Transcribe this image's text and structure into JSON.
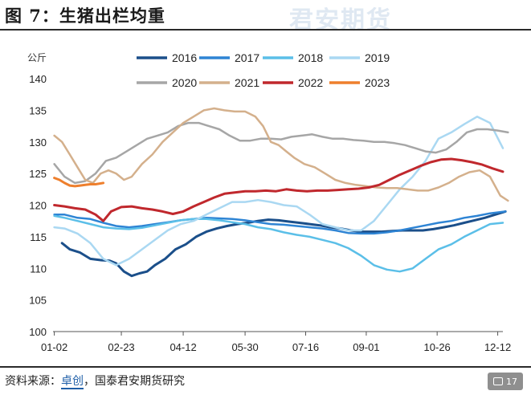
{
  "figure": {
    "title": "图 7：生猪出栏均重",
    "watermark": "君安期货",
    "source_prefix": "资料来源：",
    "source_link": "卓创",
    "source_suffix": "，国泰君安期货研究",
    "page_number": "17"
  },
  "chart_data": {
    "type": "line",
    "title": "",
    "ylabel": "公斤",
    "xlabel": "",
    "ylim": [
      100,
      140
    ],
    "yticks": [
      100,
      105,
      110,
      115,
      120,
      125,
      130,
      135,
      140
    ],
    "xlim": [
      1,
      350
    ],
    "xtick_labels": [
      "01-02",
      "02-23",
      "04-12",
      "05-30",
      "07-16",
      "09-01",
      "10-26",
      "12-12"
    ],
    "xtick_days": [
      2,
      54,
      102,
      150,
      197,
      244,
      299,
      346
    ],
    "x_unit": "day of year",
    "grid": false,
    "legend_position": "top",
    "series": [
      {
        "name": "2016",
        "color": "#1b4f8a",
        "width": 3,
        "x": [
          8,
          14,
          22,
          30,
          38,
          45,
          50,
          56,
          62,
          68,
          74,
          80,
          88,
          96,
          104,
          112,
          120,
          128,
          136,
          144,
          152,
          160,
          168,
          176,
          184,
          192,
          200,
          208,
          216,
          224,
          232,
          240,
          248,
          256,
          264,
          272,
          280,
          288,
          296,
          304,
          312,
          320,
          328,
          336,
          344,
          352
        ],
        "y": [
          114,
          113,
          112.5,
          111.5,
          111.3,
          111.2,
          110.8,
          109.5,
          108.8,
          109.2,
          109.5,
          110.5,
          111.5,
          113,
          113.8,
          115,
          115.8,
          116.3,
          116.7,
          117,
          117.2,
          117.5,
          117.7,
          117.6,
          117.4,
          117.2,
          117,
          116.8,
          116.5,
          116.3,
          116,
          115.8,
          115.8,
          115.8,
          115.9,
          116,
          116,
          116,
          116.2,
          116.5,
          116.8,
          117.2,
          117.6,
          118,
          118.5,
          119
        ]
      },
      {
        "name": "2017",
        "color": "#2e84d4",
        "width": 2.5,
        "x": [
          2,
          10,
          20,
          30,
          40,
          50,
          60,
          70,
          80,
          90,
          100,
          110,
          120,
          130,
          140,
          150,
          160,
          170,
          180,
          190,
          200,
          210,
          220,
          230,
          240,
          250,
          260,
          270,
          280,
          290,
          300,
          310,
          320,
          330,
          340,
          352
        ],
        "y": [
          118.5,
          118.5,
          118,
          117.8,
          117.2,
          116.7,
          116.5,
          116.7,
          117,
          117.3,
          117.6,
          117.8,
          118,
          117.9,
          117.8,
          117.6,
          117.3,
          117,
          116.9,
          116.7,
          116.5,
          116.3,
          116,
          115.6,
          115.5,
          115.5,
          115.7,
          116,
          116.4,
          116.8,
          117.2,
          117.5,
          118,
          118.3,
          118.7,
          119
        ]
      },
      {
        "name": "2018",
        "color": "#5bbfe8",
        "width": 2.5,
        "x": [
          2,
          10,
          20,
          30,
          40,
          50,
          60,
          70,
          80,
          90,
          100,
          110,
          120,
          130,
          140,
          150,
          160,
          170,
          180,
          190,
          200,
          210,
          220,
          230,
          240,
          250,
          260,
          270,
          280,
          290,
          300,
          310,
          320,
          330,
          340,
          350
        ],
        "y": [
          118.3,
          118,
          117.5,
          117,
          116.5,
          116.3,
          116.2,
          116.4,
          116.8,
          117.2,
          117.6,
          117.8,
          117.8,
          117.6,
          117.3,
          117,
          116.5,
          116.2,
          115.7,
          115.3,
          115,
          114.5,
          114,
          113.2,
          112,
          110.5,
          109.8,
          109.5,
          110,
          111.5,
          113,
          113.8,
          115,
          116,
          117,
          117.2
        ]
      },
      {
        "name": "2019",
        "color": "#aad8f2",
        "width": 2.5,
        "x": [
          2,
          10,
          20,
          30,
          40,
          50,
          60,
          70,
          80,
          90,
          100,
          110,
          120,
          130,
          140,
          150,
          160,
          170,
          180,
          190,
          200,
          210,
          220,
          230,
          240,
          250,
          260,
          270,
          280,
          290,
          300,
          310,
          320,
          330,
          340,
          350
        ],
        "y": [
          116.5,
          116.3,
          115.5,
          114,
          111.5,
          110.5,
          111.5,
          113,
          114.5,
          116,
          117,
          117.5,
          118.5,
          119.5,
          120.5,
          120.5,
          120.8,
          120.5,
          120,
          119.8,
          118.5,
          117,
          116.5,
          116,
          116,
          117.5,
          120,
          122.5,
          124.5,
          127,
          130.5,
          131.5,
          132.8,
          134,
          133,
          129
        ]
      },
      {
        "name": "2020",
        "color": "#a6a6a6",
        "width": 2.5,
        "x": [
          2,
          10,
          18,
          26,
          34,
          42,
          50,
          58,
          66,
          74,
          82,
          90,
          98,
          106,
          114,
          122,
          130,
          138,
          146,
          154,
          162,
          170,
          178,
          186,
          194,
          202,
          210,
          218,
          226,
          234,
          242,
          250,
          258,
          266,
          274,
          282,
          290,
          298,
          306,
          314,
          322,
          330,
          338,
          346,
          354
        ],
        "y": [
          126.5,
          124.5,
          123.5,
          123.8,
          125,
          127,
          127.5,
          128.5,
          129.5,
          130.5,
          131,
          131.5,
          132.5,
          133,
          133,
          132.5,
          132,
          131,
          130.2,
          130.2,
          130.5,
          130.5,
          130.4,
          130.8,
          131,
          131.2,
          130.8,
          130.5,
          130.5,
          130.3,
          130.2,
          130,
          130,
          129.8,
          129.5,
          129,
          128.5,
          128.3,
          128.8,
          130,
          131.5,
          132,
          132,
          131.8,
          131.5
        ]
      },
      {
        "name": "2021",
        "color": "#d4b08c",
        "width": 2.5,
        "x": [
          2,
          8,
          14,
          20,
          26,
          32,
          38,
          44,
          50,
          56,
          62,
          70,
          78,
          86,
          94,
          102,
          110,
          118,
          126,
          134,
          142,
          150,
          158,
          164,
          170,
          176,
          182,
          188,
          196,
          204,
          212,
          220,
          228,
          236,
          244,
          252,
          260,
          268,
          276,
          284,
          292,
          300,
          308,
          316,
          324,
          332,
          340,
          348,
          354
        ],
        "y": [
          131,
          130,
          128,
          126,
          124,
          123.5,
          125,
          125.5,
          125,
          124,
          124.5,
          126.5,
          128,
          130,
          131.5,
          133,
          134,
          135,
          135.3,
          135,
          134.8,
          134.8,
          134,
          132.5,
          130,
          129.5,
          128.5,
          127.5,
          126.5,
          126,
          125,
          124,
          123.5,
          123.2,
          123,
          122.8,
          122.7,
          122.7,
          122.5,
          122.3,
          122.3,
          122.8,
          123.5,
          124.5,
          125.2,
          125.5,
          124.5,
          121.5,
          120.7
        ]
      },
      {
        "name": "2022",
        "color": "#c0282d",
        "width": 3,
        "x": [
          2,
          10,
          18,
          26,
          34,
          40,
          46,
          54,
          62,
          70,
          78,
          86,
          94,
          102,
          110,
          118,
          126,
          134,
          142,
          150,
          158,
          166,
          174,
          182,
          190,
          198,
          206,
          214,
          222,
          230,
          238,
          246,
          254,
          262,
          270,
          278,
          286,
          294,
          302,
          310,
          318,
          326,
          334,
          342,
          350
        ],
        "y": [
          120,
          119.8,
          119.5,
          119.3,
          118.5,
          117.5,
          119,
          119.7,
          119.8,
          119.5,
          119.3,
          119,
          118.6,
          119,
          119.8,
          120.5,
          121.2,
          121.8,
          122,
          122.2,
          122.2,
          122.3,
          122.2,
          122.5,
          122.3,
          122.2,
          122.3,
          122.3,
          122.4,
          122.5,
          122.6,
          122.8,
          123.2,
          124,
          124.8,
          125.5,
          126.2,
          126.8,
          127.2,
          127.3,
          127.1,
          126.8,
          126.4,
          125.8,
          125.3
        ]
      },
      {
        "name": "2023",
        "color": "#ee7f2d",
        "width": 3,
        "x": [
          2,
          6,
          10,
          14,
          18,
          22,
          26,
          30,
          34,
          40
        ],
        "y": [
          124.3,
          124,
          123.5,
          123.1,
          123,
          123.1,
          123.2,
          123.3,
          123.3,
          123.5
        ]
      }
    ]
  }
}
